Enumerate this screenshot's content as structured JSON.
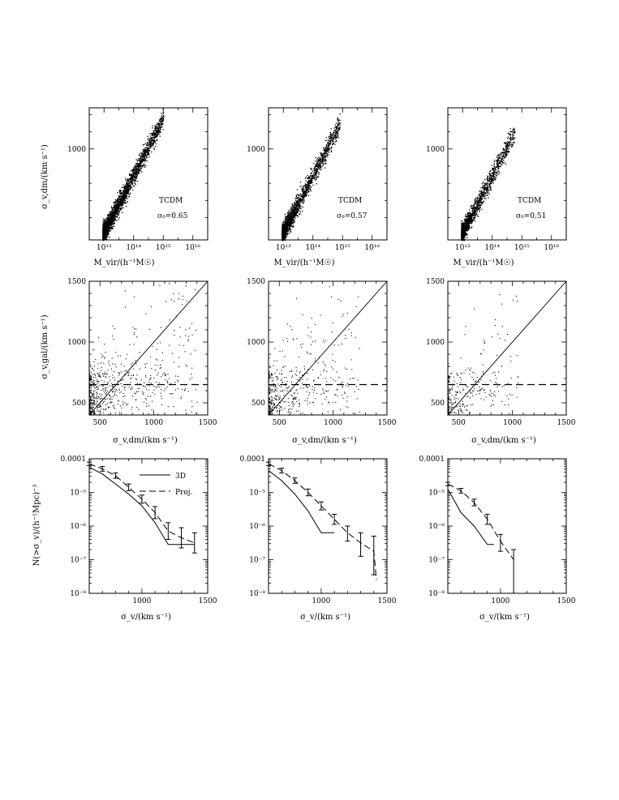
{
  "rows": {
    "top": {
      "ylabel": "σ_v,dm/(km s⁻¹)",
      "xlabel": "M_vir/(h⁻¹M☉)",
      "xticks": [
        {
          "v": 13,
          "label": "10¹³"
        },
        {
          "v": 14,
          "label": "10¹⁴"
        },
        {
          "v": 15,
          "label": "10¹⁵"
        },
        {
          "v": 16,
          "label": "10¹⁶"
        }
      ],
      "yticks": [
        {
          "v": 3,
          "label": "1000"
        }
      ]
    },
    "middle": {
      "ylabel": "σ_v,gal/(km s⁻¹)",
      "xlabel": "σ_v,dm/(km s⁻¹)",
      "ticks": [
        500,
        1000,
        1500
      ],
      "tick_labels": [
        "500",
        "1000",
        "1500"
      ],
      "cut_level": 650
    },
    "bottom": {
      "ylabel": "N(>σ_v)/(h⁻¹Mpc)⁻³",
      "xlabel": "σ_v/(km s⁻¹)",
      "xticks": [
        1000,
        1500
      ],
      "xtick_labels": [
        "1000",
        "1500"
      ],
      "yticks": [
        -4,
        -5,
        -6,
        -7,
        -8
      ],
      "ytick_labels": [
        "0.0001",
        "10⁻⁵",
        "10⁻⁶",
        "10⁻⁷",
        "10⁻⁸"
      ],
      "legend": {
        "solid": "3D",
        "dashed": "Proj."
      }
    }
  },
  "chart_data": [
    {
      "id": "a",
      "type": "scatter",
      "model": "TCDM",
      "sigma8_label": "σ₈=0.65",
      "x_scale": "log",
      "y_scale": "log",
      "xlim_log10": [
        12.5,
        16.5
      ],
      "ylim_log10": [
        2.47,
        3.24
      ],
      "cloud": {
        "log10_mass_start": 12.95,
        "log10_mass_end": 15.0,
        "log10_sigma_at_start": 2.5,
        "slope": 0.333,
        "n_points": 2600
      }
    },
    {
      "id": "b",
      "type": "scatter",
      "model": "TCDM",
      "sigma8_label": "σ₈=0.57",
      "x_scale": "log",
      "y_scale": "log",
      "xlim_log10": [
        12.5,
        16.5
      ],
      "ylim_log10": [
        2.47,
        3.24
      ],
      "cloud": {
        "log10_mass_start": 12.95,
        "log10_mass_end": 14.9,
        "log10_sigma_at_start": 2.5,
        "slope": 0.333,
        "n_points": 2000
      }
    },
    {
      "id": "c",
      "type": "scatter",
      "model": "TCDM",
      "sigma8_label": "σ₈=0.51",
      "x_scale": "log",
      "y_scale": "log",
      "xlim_log10": [
        12.5,
        16.5
      ],
      "ylim_log10": [
        2.47,
        3.24
      ],
      "cloud": {
        "log10_mass_start": 12.95,
        "log10_mass_end": 14.75,
        "log10_sigma_at_start": 2.5,
        "slope": 0.333,
        "n_points": 1600
      }
    },
    {
      "id": "d",
      "type": "scatter",
      "xlim": [
        400,
        1500
      ],
      "ylim": [
        400,
        1500
      ],
      "one_to_one_line": true,
      "cut_level": 650,
      "cloud": {
        "x_max": 1400,
        "n_points": 650
      }
    },
    {
      "id": "e",
      "type": "scatter",
      "xlim": [
        400,
        1500
      ],
      "ylim": [
        400,
        1500
      ],
      "one_to_one_line": true,
      "cut_level": 650,
      "cloud": {
        "x_max": 1250,
        "n_points": 450
      }
    },
    {
      "id": "f",
      "type": "scatter",
      "xlim": [
        400,
        1500
      ],
      "ylim": [
        400,
        1500
      ],
      "one_to_one_line": true,
      "cut_level": 650,
      "cloud": {
        "x_max": 1050,
        "n_points": 280
      }
    },
    {
      "id": "g",
      "type": "line",
      "y_scale": "log",
      "xlim": [
        600,
        1500
      ],
      "ylim_log10": [
        -8,
        -4
      ],
      "series": [
        {
          "name": "3D",
          "style": "solid",
          "x": [
            600,
            700,
            800,
            900,
            1000,
            1100,
            1200,
            1300,
            1400
          ],
          "log10_y": [
            -4.25,
            -4.45,
            -4.75,
            -5.05,
            -5.4,
            -5.9,
            -6.55,
            -6.55,
            -6.55
          ]
        },
        {
          "name": "Proj.",
          "style": "dashed",
          "x": [
            600,
            700,
            800,
            900,
            1000,
            1100,
            1200,
            1300,
            1400
          ],
          "log10_y": [
            -4.15,
            -4.3,
            -4.5,
            -4.85,
            -5.2,
            -5.6,
            -6.15,
            -6.35,
            -6.5
          ],
          "err_low": [
            0.05,
            0.07,
            0.08,
            0.1,
            0.12,
            0.18,
            0.25,
            0.3,
            0.3
          ],
          "err_high": [
            0.05,
            0.07,
            0.08,
            0.1,
            0.12,
            0.18,
            0.25,
            0.3,
            0.3
          ]
        }
      ]
    },
    {
      "id": "h",
      "type": "line",
      "y_scale": "log",
      "xlim": [
        600,
        1500
      ],
      "ylim_log10": [
        -8,
        -4
      ],
      "series": [
        {
          "name": "3D",
          "style": "solid",
          "x": [
            600,
            700,
            800,
            900,
            1000,
            1100
          ],
          "log10_y": [
            -4.35,
            -4.65,
            -5.05,
            -5.55,
            -6.2,
            -6.2
          ]
        },
        {
          "name": "Proj.",
          "style": "dashed",
          "x": [
            600,
            700,
            800,
            900,
            1000,
            1100,
            1200,
            1300,
            1400,
            1420
          ],
          "log10_y": [
            -4.15,
            -4.35,
            -4.65,
            -5.0,
            -5.4,
            -5.8,
            -6.2,
            -6.5,
            -6.75,
            -7.6
          ],
          "err_low": [
            0.05,
            0.07,
            0.08,
            0.1,
            0.12,
            0.15,
            0.25,
            0.4,
            0.7,
            0
          ],
          "err_high": [
            0.05,
            0.07,
            0.08,
            0.1,
            0.12,
            0.15,
            0.2,
            0.3,
            0.45,
            0
          ]
        }
      ]
    },
    {
      "id": "i",
      "type": "line",
      "y_scale": "log",
      "xlim": [
        600,
        1500
      ],
      "ylim_log10": [
        -8,
        -4
      ],
      "series": [
        {
          "name": "3D",
          "style": "solid",
          "x": [
            600,
            700,
            800,
            900,
            950
          ],
          "log10_y": [
            -4.9,
            -5.6,
            -6.0,
            -6.55,
            -6.55
          ]
        },
        {
          "name": "Proj.",
          "style": "dashed",
          "x": [
            600,
            700,
            800,
            900,
            1000,
            1100
          ],
          "log10_y": [
            -4.75,
            -4.95,
            -5.3,
            -5.8,
            -6.45,
            -7.0
          ],
          "err_low": [
            0.05,
            0.07,
            0.1,
            0.15,
            0.3,
            1.0
          ],
          "err_high": [
            0.05,
            0.07,
            0.1,
            0.15,
            0.2,
            0.3
          ]
        }
      ]
    }
  ]
}
